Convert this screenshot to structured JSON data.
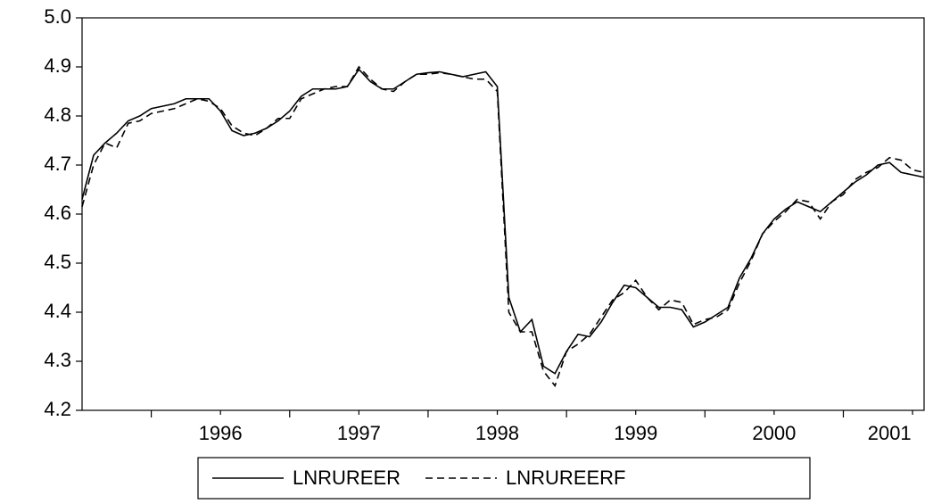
{
  "chart_data": {
    "type": "line",
    "categories": [
      null,
      null,
      null,
      null,
      null,
      null,
      null,
      null,
      null,
      null,
      null,
      null,
      "1996",
      null,
      null,
      null,
      null,
      null,
      null,
      null,
      null,
      null,
      null,
      null,
      "1997",
      null,
      null,
      null,
      null,
      null,
      null,
      null,
      null,
      null,
      null,
      null,
      "1998",
      null,
      null,
      null,
      null,
      null,
      null,
      null,
      null,
      null,
      null,
      null,
      "1999",
      null,
      null,
      null,
      null,
      null,
      null,
      null,
      null,
      null,
      null,
      null,
      "2000",
      null,
      null,
      null,
      null,
      null,
      null,
      null,
      null,
      null,
      "2001",
      null,
      null,
      null
    ],
    "series": [
      {
        "name": "LNRUREER",
        "color": "#000000",
        "dash": "solid",
        "values": [
          4.63,
          4.72,
          4.745,
          4.765,
          4.79,
          4.8,
          4.815,
          4.82,
          4.825,
          4.835,
          4.835,
          4.835,
          4.81,
          4.77,
          4.76,
          4.765,
          4.775,
          4.79,
          4.81,
          4.84,
          4.855,
          4.855,
          4.855,
          4.86,
          4.895,
          4.87,
          4.855,
          4.855,
          4.87,
          4.885,
          4.888,
          4.89,
          4.885,
          4.88,
          4.885,
          4.89,
          4.86,
          4.43,
          4.36,
          4.385,
          4.29,
          4.275,
          4.32,
          4.355,
          4.35,
          4.38,
          4.42,
          4.455,
          4.45,
          4.43,
          4.41,
          4.41,
          4.405,
          4.37,
          4.38,
          4.395,
          4.41,
          4.47,
          4.51,
          4.56,
          4.59,
          4.61,
          4.625,
          4.615,
          4.605,
          4.625,
          4.645,
          4.665,
          4.68,
          4.7,
          4.705,
          4.685,
          4.68,
          4.675
        ]
      },
      {
        "name": "LNRUREERF",
        "color": "#000000",
        "dash": "dashed",
        "values": [
          4.615,
          4.7,
          4.745,
          4.735,
          4.785,
          4.79,
          4.805,
          4.81,
          4.815,
          4.825,
          4.835,
          4.83,
          4.815,
          4.78,
          4.765,
          4.76,
          4.775,
          4.795,
          4.795,
          4.835,
          4.845,
          4.855,
          4.86,
          4.86,
          4.9,
          4.875,
          4.855,
          4.85,
          4.87,
          4.885,
          4.885,
          4.888,
          4.885,
          4.88,
          4.875,
          4.875,
          4.85,
          4.4,
          4.36,
          4.36,
          4.28,
          4.25,
          4.32,
          4.335,
          4.355,
          4.39,
          4.425,
          4.44,
          4.465,
          4.43,
          4.405,
          4.425,
          4.42,
          4.375,
          4.385,
          4.39,
          4.405,
          4.46,
          4.505,
          4.56,
          4.585,
          4.605,
          4.63,
          4.625,
          4.59,
          4.625,
          4.64,
          4.67,
          4.685,
          4.695,
          4.715,
          4.71,
          4.69,
          4.685
        ]
      }
    ],
    "ylim": [
      4.2,
      5.0
    ],
    "yticks": [
      4.2,
      4.3,
      4.4,
      4.5,
      4.6,
      4.7,
      4.8,
      4.9,
      {
        "value": 5.0,
        "label": "5.0"
      }
    ],
    "grid": false,
    "legend": "bottom"
  }
}
